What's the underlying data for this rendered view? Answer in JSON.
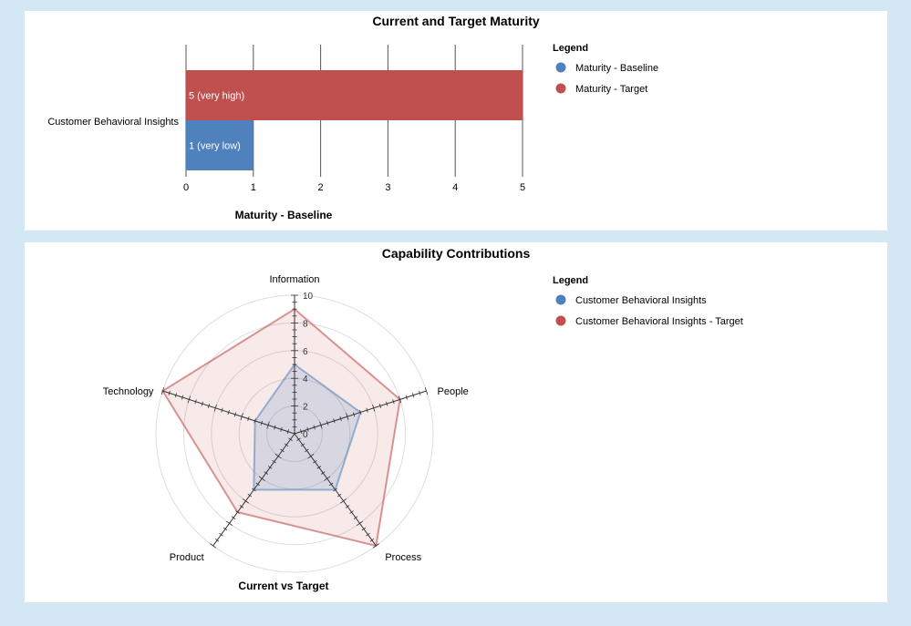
{
  "colors": {
    "baseline": "#4f81bd",
    "target": "#c0504d",
    "background": "#d4e7f4"
  },
  "chart_data": [
    {
      "type": "bar",
      "orientation": "horizontal",
      "title": "Current and Target Maturity",
      "xlabel": "Maturity - Baseline",
      "xlim": [
        0,
        5
      ],
      "x_ticks": [
        "0",
        "1",
        "2",
        "3",
        "4",
        "5"
      ],
      "categories": [
        "Customer Behavioral Insights"
      ],
      "grid": true,
      "legend_placement": "right",
      "legend_title": "Legend",
      "series": [
        {
          "name": "Maturity - Baseline",
          "values": [
            1
          ],
          "labels": [
            "1 (very low)"
          ],
          "color": "#4f81bd"
        },
        {
          "name": "Maturity - Target",
          "values": [
            5
          ],
          "labels": [
            "5 (very high)"
          ],
          "color": "#c0504d"
        }
      ]
    },
    {
      "type": "radar",
      "title": "Capability Contributions",
      "xlabel": "Current vs Target",
      "axes": [
        "Information",
        "People",
        "Process",
        "Product",
        "Technology"
      ],
      "rlim": [
        0,
        10
      ],
      "r_ticks": [
        "0",
        "2",
        "4",
        "6",
        "8",
        "10"
      ],
      "legend_placement": "right",
      "legend_title": "Legend",
      "series": [
        {
          "name": "Customer Behavioral Insights",
          "values": [
            5,
            5,
            5,
            5,
            3
          ],
          "color": "#4f81bd"
        },
        {
          "name": "Customer Behavioral Insights - Target",
          "values": [
            9,
            8,
            10,
            7,
            10
          ],
          "color": "#c0504d"
        }
      ]
    }
  ]
}
